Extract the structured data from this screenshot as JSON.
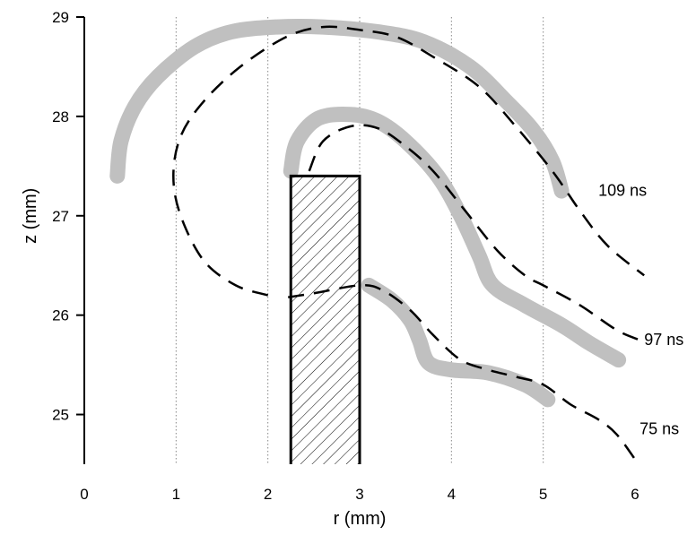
{
  "chart_data": {
    "type": "line",
    "title": "",
    "xlabel": "r (mm)",
    "ylabel": "z (mm)",
    "xlim": [
      0,
      6
    ],
    "ylim": [
      24.5,
      29
    ],
    "x_ticks": [
      "0",
      "1",
      "2",
      "3",
      "4",
      "5",
      "6"
    ],
    "y_ticks": [
      "25",
      "26",
      "27",
      "28",
      "29"
    ],
    "vertical_grid": true,
    "colors": {
      "gray": "#c0c0c0",
      "dashed": "#000000",
      "hatch": "#000000"
    },
    "electrode": {
      "r_min": 2.25,
      "r_max": 3.0,
      "z_top": 27.4,
      "pattern": "diagonal hatch"
    },
    "series": [
      {
        "name": "109 ns",
        "label_at": [
          5.6,
          27.2
        ],
        "gray": [
          [
            0.36,
            27.4
          ],
          [
            0.4,
            27.75
          ],
          [
            0.55,
            28.1
          ],
          [
            0.8,
            28.4
          ],
          [
            1.2,
            28.7
          ],
          [
            1.6,
            28.85
          ],
          [
            2.1,
            28.9
          ],
          [
            2.6,
            28.9
          ],
          [
            3.2,
            28.85
          ],
          [
            3.7,
            28.75
          ],
          [
            4.2,
            28.5
          ],
          [
            4.6,
            28.15
          ],
          [
            4.9,
            27.85
          ],
          [
            5.1,
            27.55
          ],
          [
            5.2,
            27.25
          ]
        ],
        "dashed": [
          [
            2.0,
            26.2
          ],
          [
            1.65,
            26.3
          ],
          [
            1.3,
            26.55
          ],
          [
            1.05,
            27.0
          ],
          [
            0.97,
            27.4
          ],
          [
            1.05,
            27.8
          ],
          [
            1.3,
            28.15
          ],
          [
            1.7,
            28.5
          ],
          [
            2.2,
            28.8
          ],
          [
            2.6,
            28.9
          ],
          [
            3.0,
            28.87
          ],
          [
            3.4,
            28.8
          ],
          [
            3.8,
            28.6
          ],
          [
            4.3,
            28.3
          ],
          [
            4.7,
            27.9
          ],
          [
            5.1,
            27.45
          ],
          [
            5.4,
            27.05
          ],
          [
            5.7,
            26.7
          ],
          [
            6.1,
            26.4
          ]
        ]
      },
      {
        "name": "97 ns",
        "label_at": [
          6.1,
          25.7
        ],
        "gray": [
          [
            2.25,
            27.45
          ],
          [
            2.32,
            27.75
          ],
          [
            2.55,
            27.98
          ],
          [
            2.9,
            28.02
          ],
          [
            3.2,
            27.95
          ],
          [
            3.5,
            27.75
          ],
          [
            3.85,
            27.4
          ],
          [
            4.1,
            27.0
          ],
          [
            4.3,
            26.6
          ],
          [
            4.45,
            26.3
          ],
          [
            4.8,
            26.1
          ],
          [
            5.2,
            25.9
          ],
          [
            5.5,
            25.72
          ],
          [
            5.82,
            25.55
          ]
        ],
        "dashed": [
          [
            2.45,
            27.45
          ],
          [
            2.6,
            27.75
          ],
          [
            2.9,
            27.9
          ],
          [
            3.2,
            27.88
          ],
          [
            3.5,
            27.7
          ],
          [
            3.8,
            27.45
          ],
          [
            4.15,
            27.05
          ],
          [
            4.5,
            26.65
          ],
          [
            4.8,
            26.4
          ],
          [
            5.0,
            26.3
          ],
          [
            5.4,
            26.1
          ],
          [
            5.8,
            25.85
          ],
          [
            6.05,
            25.75
          ]
        ]
      },
      {
        "name": "75 ns",
        "label_at": [
          6.05,
          24.8
        ],
        "gray": [
          [
            3.1,
            26.3
          ],
          [
            3.35,
            26.15
          ],
          [
            3.55,
            25.95
          ],
          [
            3.65,
            25.75
          ],
          [
            3.75,
            25.52
          ],
          [
            4.0,
            25.45
          ],
          [
            4.4,
            25.42
          ],
          [
            4.8,
            25.3
          ],
          [
            5.05,
            25.15
          ]
        ],
        "dashed": [
          [
            2.22,
            26.18
          ],
          [
            2.5,
            26.22
          ],
          [
            3.0,
            26.3
          ],
          [
            3.25,
            26.25
          ],
          [
            3.55,
            26.05
          ],
          [
            3.8,
            25.8
          ],
          [
            4.1,
            25.55
          ],
          [
            4.4,
            25.45
          ],
          [
            4.7,
            25.38
          ],
          [
            5.0,
            25.3
          ],
          [
            5.3,
            25.1
          ],
          [
            5.6,
            24.95
          ],
          [
            5.8,
            24.8
          ],
          [
            6.0,
            24.55
          ]
        ]
      }
    ]
  }
}
